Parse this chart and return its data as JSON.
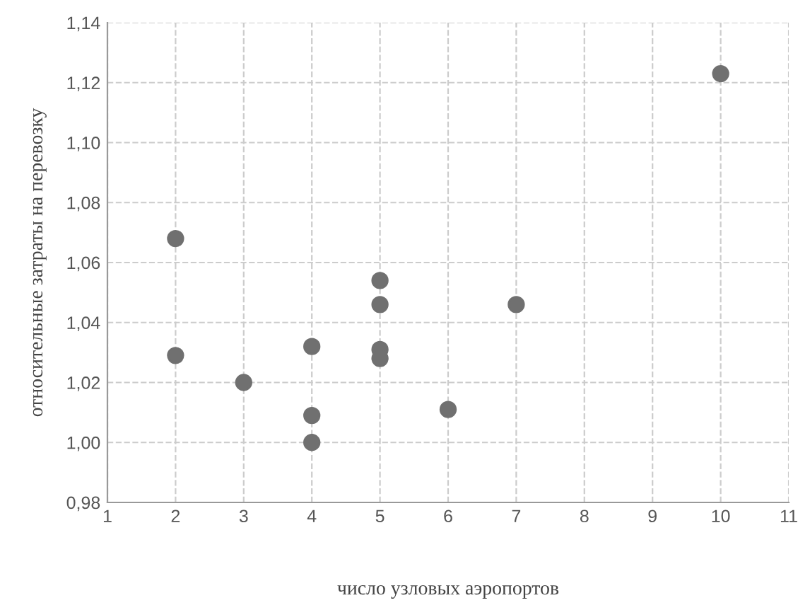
{
  "chart_data": {
    "type": "scatter",
    "xlabel": "число узловых аэропортов",
    "ylabel": "относительные затраты на перевозку",
    "x": [
      2,
      2,
      3,
      4,
      4,
      4,
      5,
      5,
      5,
      5,
      6,
      7,
      10
    ],
    "series": [
      {
        "color": "#707070",
        "values": [
          1.068,
          1.029,
          1.02,
          1.032,
          1.009,
          1.0,
          1.054,
          1.046,
          1.031,
          1.028,
          1.011,
          1.046,
          1.123
        ]
      }
    ],
    "xlim": [
      1,
      11
    ],
    "xticks": [
      1,
      2,
      3,
      4,
      5,
      6,
      7,
      8,
      9,
      10,
      11
    ],
    "ylim": [
      0.98,
      1.14
    ],
    "yticks": [
      {
        "value": 0.98,
        "label": "0,98"
      },
      {
        "value": 1.0,
        "label": "1,00"
      },
      {
        "value": 1.02,
        "label": "1,02"
      },
      {
        "value": 1.04,
        "label": "1,04"
      },
      {
        "value": 1.06,
        "label": "1,06"
      },
      {
        "value": 1.08,
        "label": "1,08"
      },
      {
        "value": 1.1,
        "label": "1,10"
      },
      {
        "value": 1.12,
        "label": "1,12"
      },
      {
        "value": 1.14,
        "label": "1,14"
      }
    ],
    "grid": true,
    "marker": "circle"
  }
}
